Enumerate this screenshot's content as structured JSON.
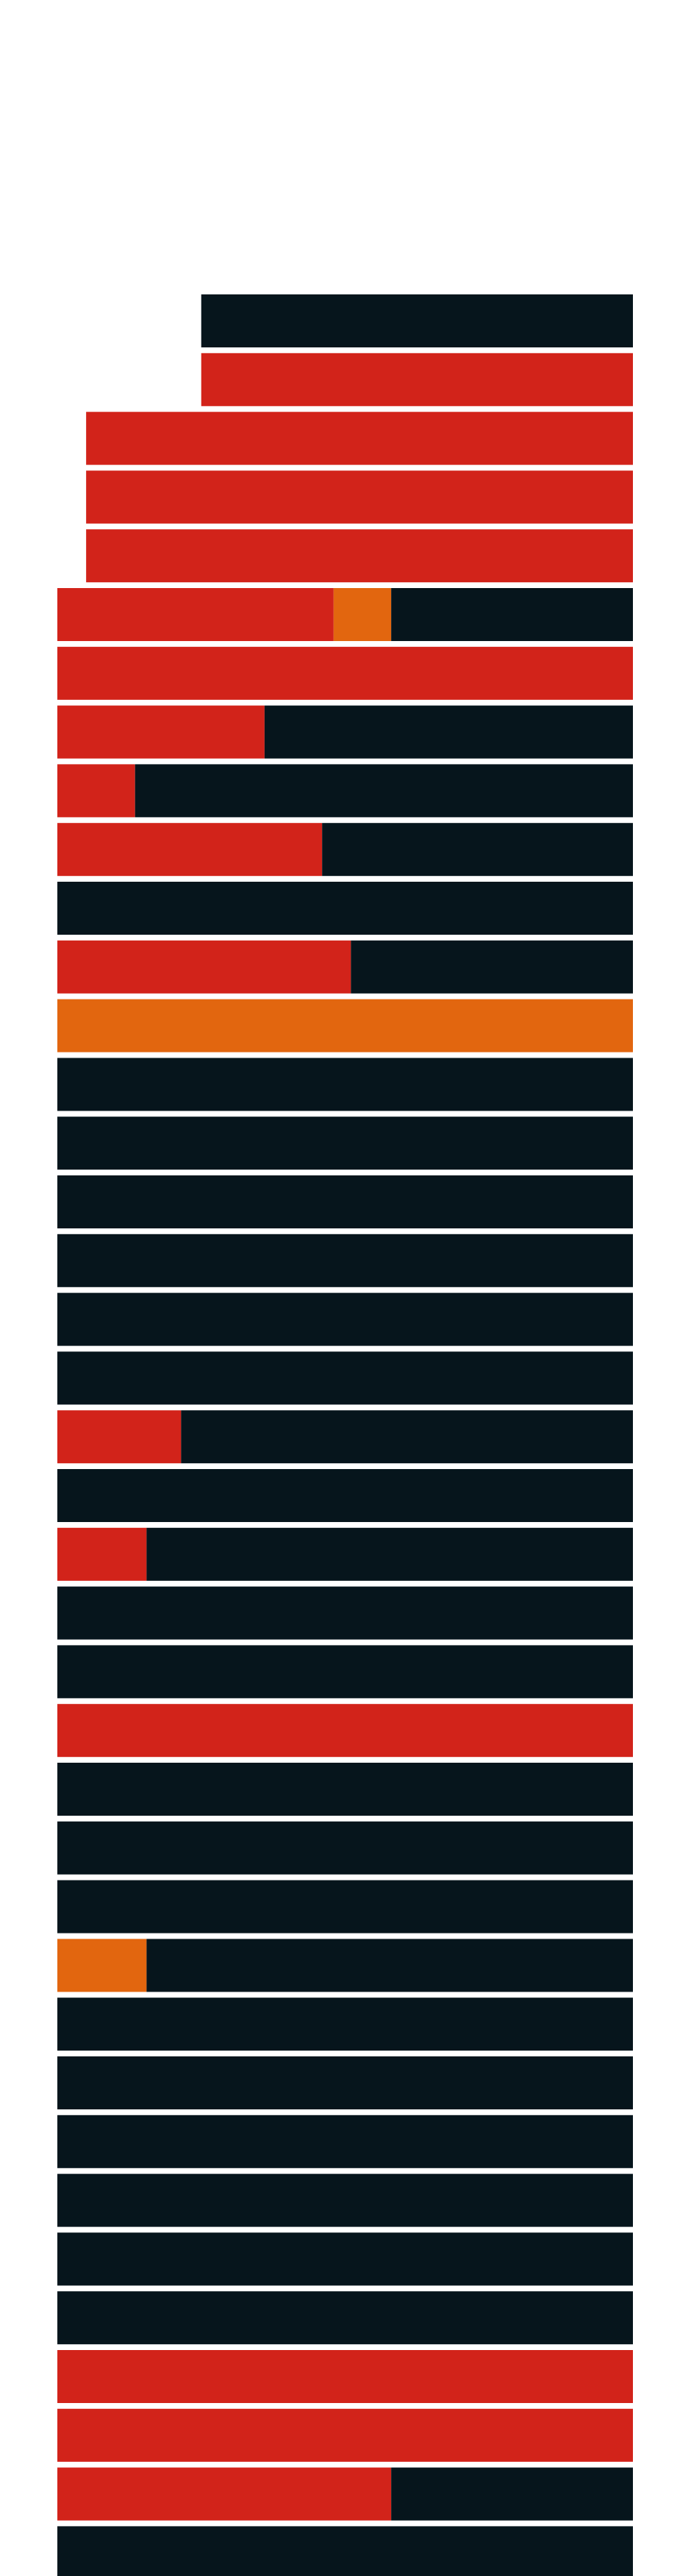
{
  "chart_data": {
    "type": "bar",
    "orientation": "horizontal",
    "stacked": true,
    "title": "",
    "xlabel": "",
    "ylabel": "",
    "xlim": [
      0,
      1
    ],
    "grid": false,
    "legend": "none",
    "colors": {
      "red": "#d2231a",
      "orange": "#e2660f",
      "dark": "#06151c"
    },
    "rows": [
      {
        "start": 0.25,
        "segments": [
          {
            "color": "dark",
            "value": 0.75
          }
        ]
      },
      {
        "start": 0.25,
        "segments": [
          {
            "color": "red",
            "value": 0.75
          }
        ]
      },
      {
        "start": 0.05,
        "segments": [
          {
            "color": "red",
            "value": 0.95
          }
        ]
      },
      {
        "start": 0.05,
        "segments": [
          {
            "color": "red",
            "value": 0.95
          }
        ]
      },
      {
        "start": 0.05,
        "segments": [
          {
            "color": "red",
            "value": 0.95
          }
        ]
      },
      {
        "start": 0.0,
        "segments": [
          {
            "color": "red",
            "value": 0.48
          },
          {
            "color": "orange",
            "value": 0.1
          },
          {
            "color": "dark",
            "value": 0.42
          }
        ]
      },
      {
        "start": 0.0,
        "segments": [
          {
            "color": "red",
            "value": 1.0
          }
        ]
      },
      {
        "start": 0.0,
        "segments": [
          {
            "color": "red",
            "value": 0.36
          },
          {
            "color": "dark",
            "value": 0.64
          }
        ]
      },
      {
        "start": 0.0,
        "segments": [
          {
            "color": "red",
            "value": 0.135
          },
          {
            "color": "dark",
            "value": 0.865
          }
        ]
      },
      {
        "start": 0.0,
        "segments": [
          {
            "color": "red",
            "value": 0.46
          },
          {
            "color": "dark",
            "value": 0.54
          }
        ]
      },
      {
        "start": 0.0,
        "segments": [
          {
            "color": "dark",
            "value": 1.0
          }
        ]
      },
      {
        "start": 0.0,
        "segments": [
          {
            "color": "red",
            "value": 0.51
          },
          {
            "color": "dark",
            "value": 0.49
          }
        ]
      },
      {
        "start": 0.0,
        "segments": [
          {
            "color": "orange",
            "value": 1.0
          }
        ]
      },
      {
        "start": 0.0,
        "segments": [
          {
            "color": "dark",
            "value": 1.0
          }
        ]
      },
      {
        "start": 0.0,
        "segments": [
          {
            "color": "dark",
            "value": 1.0
          }
        ]
      },
      {
        "start": 0.0,
        "segments": [
          {
            "color": "dark",
            "value": 1.0
          }
        ]
      },
      {
        "start": 0.0,
        "segments": [
          {
            "color": "dark",
            "value": 1.0
          }
        ]
      },
      {
        "start": 0.0,
        "segments": [
          {
            "color": "dark",
            "value": 1.0
          }
        ]
      },
      {
        "start": 0.0,
        "segments": [
          {
            "color": "dark",
            "value": 1.0
          }
        ]
      },
      {
        "start": 0.0,
        "segments": [
          {
            "color": "red",
            "value": 0.215
          },
          {
            "color": "dark",
            "value": 0.785
          }
        ]
      },
      {
        "start": 0.0,
        "segments": [
          {
            "color": "dark",
            "value": 1.0
          }
        ]
      },
      {
        "start": 0.0,
        "segments": [
          {
            "color": "red",
            "value": 0.155
          },
          {
            "color": "dark",
            "value": 0.845
          }
        ]
      },
      {
        "start": 0.0,
        "segments": [
          {
            "color": "dark",
            "value": 1.0
          }
        ]
      },
      {
        "start": 0.0,
        "segments": [
          {
            "color": "dark",
            "value": 1.0
          }
        ]
      },
      {
        "start": 0.0,
        "segments": [
          {
            "color": "red",
            "value": 1.0
          }
        ]
      },
      {
        "start": 0.0,
        "segments": [
          {
            "color": "dark",
            "value": 1.0
          }
        ]
      },
      {
        "start": 0.0,
        "segments": [
          {
            "color": "dark",
            "value": 1.0
          }
        ]
      },
      {
        "start": 0.0,
        "segments": [
          {
            "color": "dark",
            "value": 1.0
          }
        ]
      },
      {
        "start": 0.0,
        "segments": [
          {
            "color": "orange",
            "value": 0.155
          },
          {
            "color": "dark",
            "value": 0.845
          }
        ]
      },
      {
        "start": 0.0,
        "segments": [
          {
            "color": "dark",
            "value": 1.0
          }
        ]
      },
      {
        "start": 0.0,
        "segments": [
          {
            "color": "dark",
            "value": 1.0
          }
        ]
      },
      {
        "start": 0.0,
        "segments": [
          {
            "color": "dark",
            "value": 1.0
          }
        ]
      },
      {
        "start": 0.0,
        "segments": [
          {
            "color": "dark",
            "value": 1.0
          }
        ]
      },
      {
        "start": 0.0,
        "segments": [
          {
            "color": "dark",
            "value": 1.0
          }
        ]
      },
      {
        "start": 0.0,
        "segments": [
          {
            "color": "dark",
            "value": 1.0
          }
        ]
      },
      {
        "start": 0.0,
        "segments": [
          {
            "color": "red",
            "value": 1.0
          }
        ]
      },
      {
        "start": 0.0,
        "segments": [
          {
            "color": "red",
            "value": 1.0
          }
        ]
      },
      {
        "start": 0.0,
        "segments": [
          {
            "color": "red",
            "value": 0.58
          },
          {
            "color": "dark",
            "value": 0.42
          }
        ]
      },
      {
        "start": 0.0,
        "segments": [
          {
            "color": "dark",
            "value": 1.0
          }
        ]
      }
    ]
  }
}
